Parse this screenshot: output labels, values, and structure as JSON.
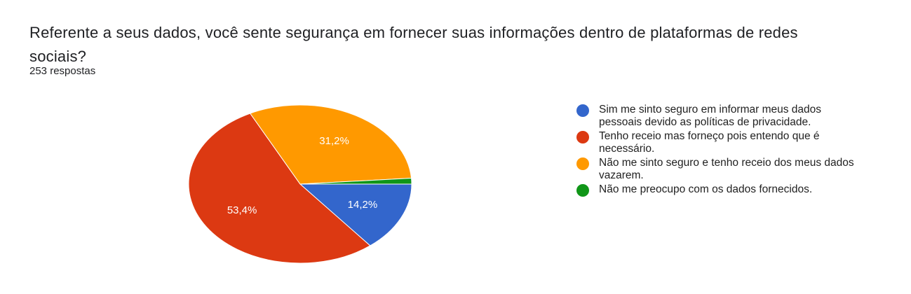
{
  "chart_data": {
    "type": "pie",
    "title": "Referente a seus dados, você sente segurança em fornecer suas informações dentro de plataformas de redes sociais?",
    "subtitle": "253 respostas",
    "categories": [
      "Sim me sinto seguro em informar meus dados pessoais devido as políticas de privacidade.",
      "Tenho receio mas forneço pois entendo que é necessário.",
      "Não me sinto seguro e tenho receio dos meus dados vazarem.",
      "Não me preocupo com os dados fornecidos."
    ],
    "values": [
      14.2,
      53.4,
      31.2,
      1.2
    ],
    "value_labels": [
      "14,2%",
      "53,4%",
      "31,2%",
      null
    ],
    "colors": [
      "#3366cc",
      "#dc3912",
      "#ff9900",
      "#109618"
    ],
    "legend": "right"
  }
}
